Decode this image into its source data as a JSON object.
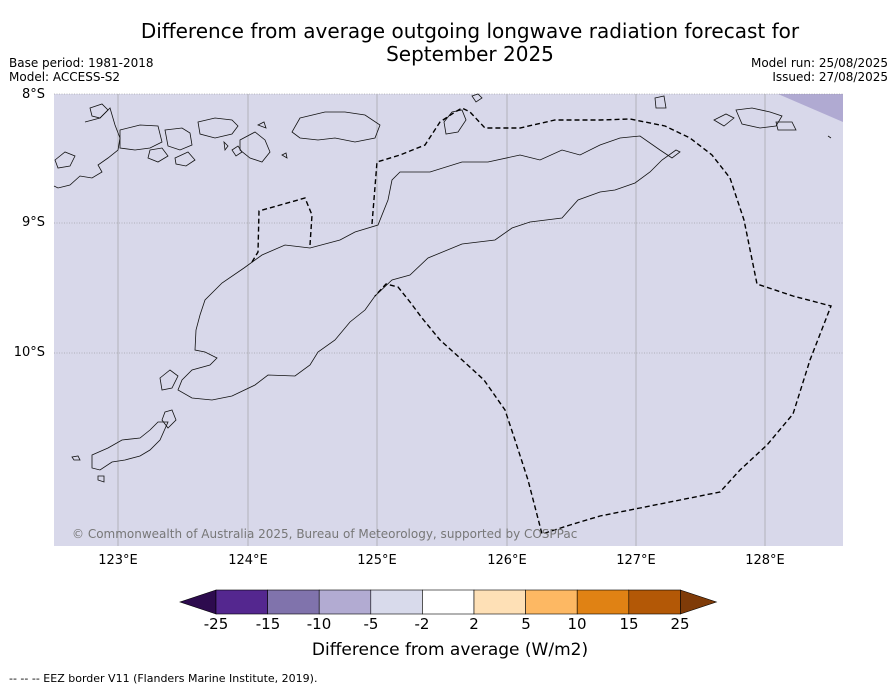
{
  "title": "Difference from average outgoing longwave radiation forecast for September 2025",
  "meta_left": [
    "Base period: 1981-2018",
    "Model: ACCESS-S2"
  ],
  "meta_right": [
    "Model run: 25/08/2025",
    "Issued: 27/08/2025"
  ],
  "lat_labels": [
    "8°S",
    "9°S",
    "10°S"
  ],
  "lon_labels": [
    "123°E",
    "124°E",
    "125°E",
    "126°E",
    "127°E",
    "128°E"
  ],
  "copyright": "© Commonwealth of Australia 2025, Bureau of Meteorology, supported by COSPPac",
  "colorbar": {
    "labels": [
      "-25",
      "-15",
      "-10",
      "-5",
      "-2",
      "2",
      "5",
      "10",
      "15",
      "25"
    ],
    "colors": [
      "#2d0b4e",
      "#54278f",
      "#8073ac",
      "#b2abd2",
      "#d8daeb",
      "#ffffff",
      "#fee0b6",
      "#fdb863",
      "#e08214",
      "#b35806",
      "#7f3b08"
    ],
    "title": "Difference from average (W/m2)"
  },
  "footer": "--  --  -- EEZ border V11 (Flanders Marine Institute, 2019).",
  "map_colors": {
    "background": "#d8d8ea",
    "corner": "#b0aad2"
  }
}
